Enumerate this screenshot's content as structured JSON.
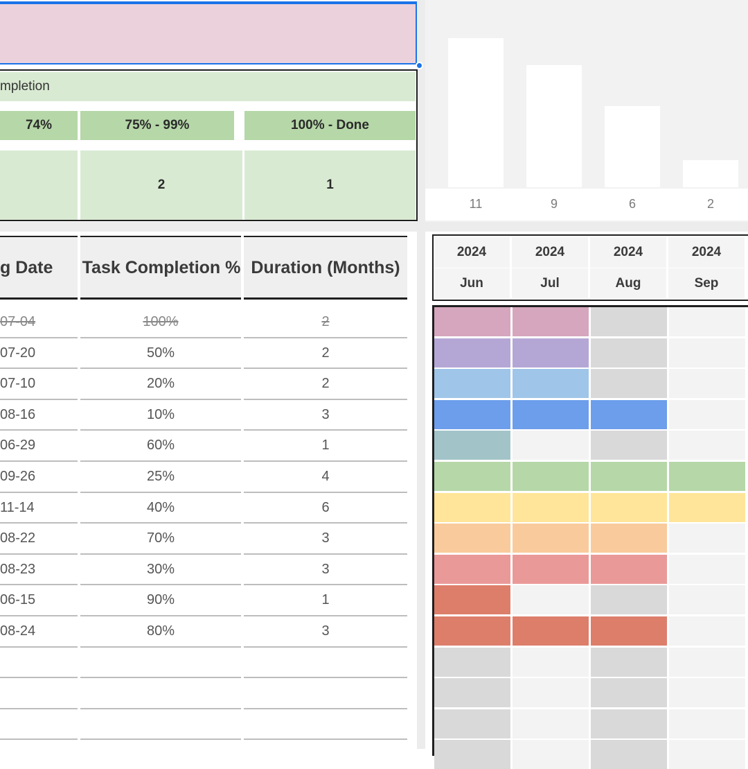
{
  "summary": {
    "title": "mpletion",
    "headers": [
      "74%",
      "75% - 99%",
      "100% - Done"
    ],
    "values": [
      "",
      "2",
      "1"
    ]
  },
  "chart_data": {
    "type": "bar",
    "categories": [
      "11",
      "9",
      "6",
      "2"
    ],
    "values": [
      11,
      9,
      6,
      2
    ],
    "title": "",
    "xlabel": "",
    "ylabel": "",
    "ylim": [
      0,
      12
    ]
  },
  "table": {
    "headers": {
      "date": "g Date",
      "pct": "Task Completion %",
      "dur": "Duration (Months)"
    },
    "rows": [
      {
        "date": "07-04",
        "pct": "100%",
        "dur": "2",
        "done": true
      },
      {
        "date": "07-20",
        "pct": "50%",
        "dur": "2",
        "done": false
      },
      {
        "date": "07-10",
        "pct": "20%",
        "dur": "2",
        "done": false
      },
      {
        "date": "08-16",
        "pct": "10%",
        "dur": "3",
        "done": false
      },
      {
        "date": "06-29",
        "pct": "60%",
        "dur": "1",
        "done": false
      },
      {
        "date": "09-26",
        "pct": "25%",
        "dur": "4",
        "done": false
      },
      {
        "date": "11-14",
        "pct": "40%",
        "dur": "6",
        "done": false
      },
      {
        "date": "08-22",
        "pct": "70%",
        "dur": "3",
        "done": false
      },
      {
        "date": "08-23",
        "pct": "30%",
        "dur": "3",
        "done": false
      },
      {
        "date": "06-15",
        "pct": "90%",
        "dur": "1",
        "done": false
      },
      {
        "date": "08-24",
        "pct": "80%",
        "dur": "3",
        "done": false
      }
    ]
  },
  "gantt": {
    "columns": [
      {
        "year": "2024",
        "month": "Jun"
      },
      {
        "year": "2024",
        "month": "Jul"
      },
      {
        "year": "2024",
        "month": "Aug"
      },
      {
        "year": "2024",
        "month": "Sep"
      }
    ],
    "rows": [
      [
        "#d5a6bd",
        "#d5a6bd",
        "#d9d9d9",
        "#f3f3f3"
      ],
      [
        "#b4a7d6",
        "#b4a7d6",
        "#d9d9d9",
        "#f3f3f3"
      ],
      [
        "#9fc5e8",
        "#9fc5e8",
        "#d9d9d9",
        "#f3f3f3"
      ],
      [
        "#6d9eeb",
        "#6d9eeb",
        "#6d9eeb",
        "#f3f3f3"
      ],
      [
        "#a2c4c9",
        "#f3f3f3",
        "#d9d9d9",
        "#f3f3f3"
      ],
      [
        "#b6d7a8",
        "#b6d7a8",
        "#b6d7a8",
        "#b6d7a8"
      ],
      [
        "#ffe599",
        "#ffe599",
        "#ffe599",
        "#ffe599"
      ],
      [
        "#f9cb9c",
        "#f9cb9c",
        "#f9cb9c",
        "#f3f3f3"
      ],
      [
        "#ea9999",
        "#ea9999",
        "#ea9999",
        "#f3f3f3"
      ],
      [
        "#dd7e6b",
        "#f3f3f3",
        "#d9d9d9",
        "#f3f3f3"
      ],
      [
        "#dd7e6b",
        "#dd7e6b",
        "#dd7e6b",
        "#f3f3f3"
      ],
      [
        "#d9d9d9",
        "#f3f3f3",
        "#d9d9d9",
        "#f3f3f3"
      ],
      [
        "#d9d9d9",
        "#f3f3f3",
        "#d9d9d9",
        "#f3f3f3"
      ],
      [
        "#d9d9d9",
        "#f3f3f3",
        "#d9d9d9",
        "#f3f3f3"
      ],
      [
        "#d9d9d9",
        "#f3f3f3",
        "#d9d9d9",
        "#f3f3f3"
      ]
    ]
  }
}
